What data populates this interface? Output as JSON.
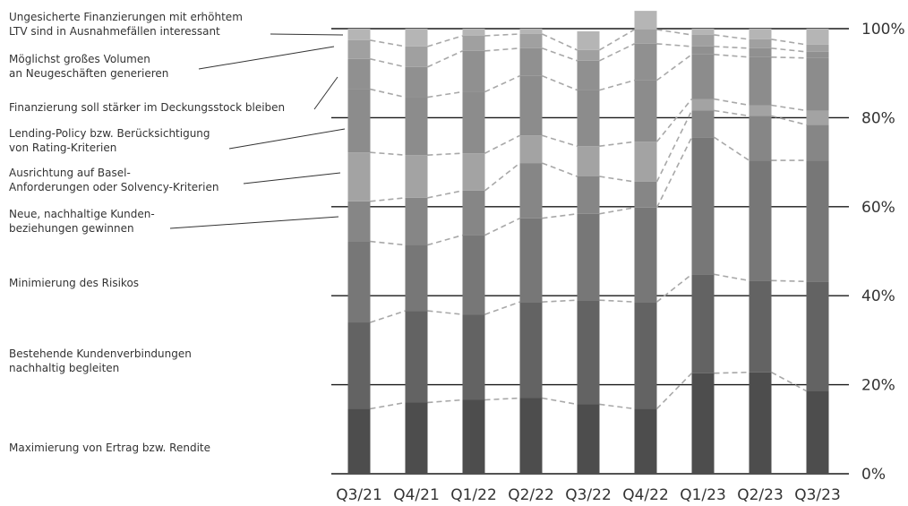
{
  "chart_data": {
    "type": "bar",
    "stacked": true,
    "grid": true,
    "ylim": [
      0,
      100
    ],
    "y_ticks": [
      "0%",
      "20%",
      "40%",
      "60%",
      "80%",
      "100%"
    ],
    "categories": [
      "Q3/21",
      "Q4/21",
      "Q1/22",
      "Q2/22",
      "Q3/22",
      "Q4/22",
      "Q1/23",
      "Q2/23",
      "Q3/23"
    ],
    "series": [
      {
        "name": "Maximierung von Ertrag bzw. Rendite",
        "color": "#4d4d4d",
        "values": [
          14.6,
          16.0,
          16.6,
          17.0,
          15.6,
          14.6,
          22.6,
          22.8,
          18.6
        ]
      },
      {
        "name": "Bestehende Kundenverbindungen nachhaltig begleiten",
        "color": "#636363",
        "values": [
          19.4,
          20.6,
          19.2,
          21.6,
          23.4,
          24.0,
          22.2,
          20.6,
          24.6
        ]
      },
      {
        "name": "Minimierung des Risikos",
        "color": "#777777",
        "values": [
          18.2,
          14.8,
          17.8,
          18.8,
          19.4,
          21.2,
          30.8,
          27.0,
          27.2
        ]
      },
      {
        "name": "Neue, nachhaltige Kunden-beziehungen gewinnen",
        "color": "#868686",
        "values": [
          9.0,
          10.6,
          10.0,
          12.4,
          8.4,
          5.8,
          6.0,
          10.0,
          8.0
        ]
      },
      {
        "name": "Ausrichtung auf Basel-Anforderungen oder Solvency-Kriterien",
        "color": "#a3a3a3",
        "values": [
          11.0,
          9.6,
          8.4,
          6.2,
          6.8,
          9.0,
          2.6,
          2.4,
          3.2
        ]
      },
      {
        "name": "Lending-Policy bzw. Berücksichtigung von Rating-Kriterien",
        "color": "#8c8c8c",
        "values": [
          14.2,
          13.0,
          13.8,
          13.4,
          12.6,
          13.8,
          10.0,
          10.8,
          11.8
        ]
      },
      {
        "name": "Finanzierung soll stärker im Deckungsstock bleiben",
        "color": "#909090",
        "values": [
          6.8,
          6.8,
          9.2,
          6.2,
          6.6,
          8.2,
          1.8,
          2.0,
          1.4
        ]
      },
      {
        "name": "Möglichst großes Volumen an Neugeschäften generieren",
        "color": "#a0a0a0",
        "values": [
          4.2,
          4.6,
          3.4,
          3.2,
          2.4,
          3.2,
          2.6,
          2.0,
          1.6
        ]
      },
      {
        "name": "Ungesicherte Finanzierungen mit erhöhtem LTV sind in Ausnahmefällen interessant",
        "color": "#b5b5b5",
        "values": [
          2.6,
          4.0,
          1.6,
          1.2,
          4.2,
          4.2,
          1.4,
          2.4,
          3.6
        ]
      }
    ],
    "legend": {
      "placement": "left",
      "entries": [
        [
          "Ungesicherte Finanzierungen mit erhöhtem",
          "LTV sind in Ausnahmefällen interessant"
        ],
        [
          "Möglichst großes Volumen",
          "an Neugeschäften generieren"
        ],
        [
          "Finanzierung soll stärker im Deckungsstock bleiben"
        ],
        [
          "Lending-Policy bzw. Berücksichtigung",
          "von Rating-Kriterien"
        ],
        [
          "Ausrichtung auf Basel-",
          "Anforderungen oder Solvency-Kriterien"
        ],
        [
          "Neue, nachhaltige Kunden-",
          "beziehungen gewinnen"
        ],
        [
          "Minimierung des Risikos"
        ],
        [
          "Bestehende Kundenverbindungen",
          "nachhaltig begleiten"
        ],
        [
          "Maximierung von Ertrag bzw. Rendite"
        ]
      ]
    }
  }
}
